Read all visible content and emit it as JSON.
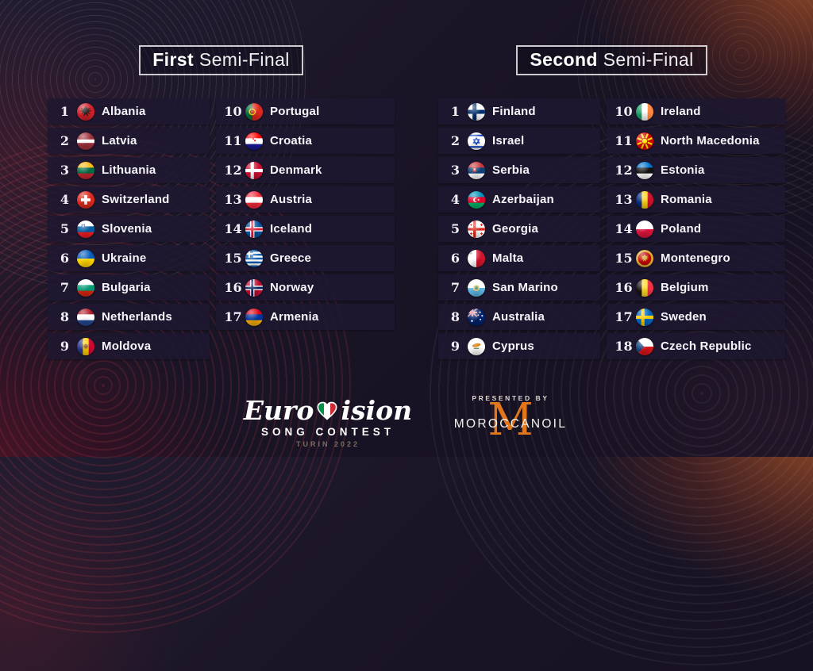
{
  "semifinals": [
    {
      "title_bold": "First",
      "title_light": "Semi-Final",
      "columns": [
        [
          {
            "n": "1",
            "name": "Albania",
            "flag": "albania"
          },
          {
            "n": "2",
            "name": "Latvia",
            "flag": "latvia"
          },
          {
            "n": "3",
            "name": "Lithuania",
            "flag": "lithuania"
          },
          {
            "n": "4",
            "name": "Switzerland",
            "flag": "switzerland"
          },
          {
            "n": "5",
            "name": "Slovenia",
            "flag": "slovenia"
          },
          {
            "n": "6",
            "name": "Ukraine",
            "flag": "ukraine"
          },
          {
            "n": "7",
            "name": "Bulgaria",
            "flag": "bulgaria"
          },
          {
            "n": "8",
            "name": "Netherlands",
            "flag": "netherlands"
          },
          {
            "n": "9",
            "name": "Moldova",
            "flag": "moldova"
          }
        ],
        [
          {
            "n": "10",
            "name": "Portugal",
            "flag": "portugal"
          },
          {
            "n": "11",
            "name": "Croatia",
            "flag": "croatia"
          },
          {
            "n": "12",
            "name": "Denmark",
            "flag": "denmark"
          },
          {
            "n": "13",
            "name": "Austria",
            "flag": "austria"
          },
          {
            "n": "14",
            "name": "Iceland",
            "flag": "iceland"
          },
          {
            "n": "15",
            "name": "Greece",
            "flag": "greece"
          },
          {
            "n": "16",
            "name": "Norway",
            "flag": "norway"
          },
          {
            "n": "17",
            "name": "Armenia",
            "flag": "armenia"
          }
        ]
      ]
    },
    {
      "title_bold": "Second",
      "title_light": "Semi-Final",
      "columns": [
        [
          {
            "n": "1",
            "name": "Finland",
            "flag": "finland"
          },
          {
            "n": "2",
            "name": "Israel",
            "flag": "israel"
          },
          {
            "n": "3",
            "name": "Serbia",
            "flag": "serbia"
          },
          {
            "n": "4",
            "name": "Azerbaijan",
            "flag": "azerbaijan"
          },
          {
            "n": "5",
            "name": "Georgia",
            "flag": "georgia"
          },
          {
            "n": "6",
            "name": "Malta",
            "flag": "malta"
          },
          {
            "n": "7",
            "name": "San Marino",
            "flag": "san_marino"
          },
          {
            "n": "8",
            "name": "Australia",
            "flag": "australia"
          },
          {
            "n": "9",
            "name": "Cyprus",
            "flag": "cyprus"
          }
        ],
        [
          {
            "n": "10",
            "name": "Ireland",
            "flag": "ireland"
          },
          {
            "n": "11",
            "name": "North Macedonia",
            "flag": "north_macedonia"
          },
          {
            "n": "12",
            "name": "Estonia",
            "flag": "estonia"
          },
          {
            "n": "13",
            "name": "Romania",
            "flag": "romania"
          },
          {
            "n": "14",
            "name": "Poland",
            "flag": "poland"
          },
          {
            "n": "15",
            "name": "Montenegro",
            "flag": "montenegro"
          },
          {
            "n": "16",
            "name": "Belgium",
            "flag": "belgium"
          },
          {
            "n": "17",
            "name": "Sweden",
            "flag": "sweden"
          },
          {
            "n": "18",
            "name": "Czech Republic",
            "flag": "czech"
          }
        ]
      ]
    }
  ],
  "footer": {
    "eurovision": {
      "word_left": "Euro",
      "word_right": "ision",
      "subtitle": "SONG CONTEST",
      "year": "TURIN 2022",
      "heart_colors": [
        "#009246",
        "#ffffff",
        "#ce2b37"
      ]
    },
    "sponsor": {
      "presented": "PRESENTED BY",
      "mark": "M",
      "name": "MOROCCANOIL"
    }
  },
  "colors": {
    "accent_orange": "#e2761b",
    "row_background": "#1d1830",
    "text": "#f7f5fa",
    "turin_text": "#7b6c60"
  },
  "flags": {
    "albania": {
      "bg": "#cf2028",
      "over": [
        [
          "eagle",
          "#1a1412",
          12,
          11.5,
          15
        ]
      ]
    },
    "latvia": {
      "stripes": {
        "dir": "h",
        "parts": [
          [
            "#9e3039",
            2
          ],
          [
            "#ffffff",
            1
          ],
          [
            "#9e3039",
            2
          ]
        ]
      }
    },
    "lithuania": {
      "stripes": {
        "dir": "h",
        "parts": [
          [
            "#fdb913",
            1
          ],
          [
            "#006a44",
            1
          ],
          [
            "#c1272d",
            1
          ]
        ]
      }
    },
    "switzerland": {
      "bg": "#da291c",
      "over": [
        [
          "plus",
          "#ffffff",
          12,
          12,
          13,
          4
        ]
      ]
    },
    "slovenia": {
      "stripes": {
        "dir": "h",
        "parts": [
          [
            "#ffffff",
            1
          ],
          [
            "#005da4",
            1
          ],
          [
            "#ed1c24",
            1
          ]
        ]
      },
      "over": [
        [
          "shield",
          "#1d5ba4",
          8.5,
          8,
          6
        ]
      ]
    },
    "ukraine": {
      "stripes": {
        "dir": "h",
        "parts": [
          [
            "#005bbb",
            1
          ],
          [
            "#ffd500",
            1
          ]
        ]
      }
    },
    "bulgaria": {
      "stripes": {
        "dir": "h",
        "parts": [
          [
            "#ffffff",
            1
          ],
          [
            "#009b74",
            1
          ],
          [
            "#d62612",
            1
          ]
        ]
      }
    },
    "netherlands": {
      "stripes": {
        "dir": "h",
        "parts": [
          [
            "#ae1c28",
            1
          ],
          [
            "#ffffff",
            1
          ],
          [
            "#21468b",
            1
          ]
        ]
      }
    },
    "moldova": {
      "stripes": {
        "dir": "v",
        "parts": [
          [
            "#27348b",
            1
          ],
          [
            "#ffd200",
            1
          ],
          [
            "#cc092f",
            1
          ]
        ]
      },
      "over": [
        [
          "eagle",
          "#8a5a2a",
          12,
          12,
          9
        ]
      ]
    },
    "portugal": {
      "stripes": {
        "dir": "v",
        "parts": [
          [
            "#046a38",
            2
          ],
          [
            "#da291c",
            3
          ]
        ]
      },
      "over": [
        [
          "ring",
          "#ffd700",
          9.6,
          12,
          8
        ],
        [
          "circle",
          "#da291c",
          9.6,
          12,
          4
        ]
      ]
    },
    "croatia": {
      "stripes": {
        "dir": "h",
        "parts": [
          [
            "#ff0000",
            1
          ],
          [
            "#ffffff",
            1
          ],
          [
            "#171796",
            1
          ]
        ]
      },
      "over": [
        [
          "checker",
          "#ff0000",
          12,
          10,
          4.4
        ]
      ]
    },
    "denmark": {
      "bg": "#c8102e",
      "cross": {
        "c": "#ffffff",
        "w": 4.5
      }
    },
    "austria": {
      "stripes": {
        "dir": "h",
        "parts": [
          [
            "#ed2939",
            1
          ],
          [
            "#ffffff",
            1
          ],
          [
            "#ed2939",
            1
          ]
        ]
      }
    },
    "iceland": {
      "bg": "#02529c",
      "cross": {
        "c": "#ffffff",
        "w": 6,
        "inner": [
          "#dc1e35",
          3
        ]
      }
    },
    "greece": {
      "stripes": {
        "dir": "h",
        "parts": [
          [
            "#0d5eaf",
            1
          ],
          [
            "#ffffff",
            1
          ],
          [
            "#0d5eaf",
            1
          ],
          [
            "#ffffff",
            1
          ],
          [
            "#0d5eaf",
            1
          ],
          [
            "#ffffff",
            1
          ],
          [
            "#0d5eaf",
            1
          ],
          [
            "#ffffff",
            1
          ],
          [
            "#0d5eaf",
            1
          ]
        ]
      },
      "over": [
        [
          "rect",
          "#0d5eaf",
          0,
          0,
          10.6,
          10.6
        ],
        [
          "plus",
          "#ffffff",
          5.3,
          5.3,
          10.6,
          2.4
        ]
      ]
    },
    "norway": {
      "bg": "#ba0c2f",
      "cross": {
        "c": "#ffffff",
        "w": 6,
        "inner": [
          "#00205b",
          3
        ]
      }
    },
    "armenia": {
      "stripes": {
        "dir": "h",
        "parts": [
          [
            "#d90012",
            1
          ],
          [
            "#0033a0",
            1
          ],
          [
            "#f2a800",
            1
          ]
        ]
      }
    },
    "finland": {
      "bg": "#ffffff",
      "cross": {
        "c": "#002f6c",
        "w": 5.5
      }
    },
    "israel": {
      "stripes": {
        "dir": "h",
        "parts": [
          [
            "#ffffff",
            3
          ],
          [
            "#0038b8",
            2.2
          ],
          [
            "#ffffff",
            13.6
          ],
          [
            "#0038b8",
            2.2
          ],
          [
            "#ffffff",
            3
          ]
        ]
      },
      "over": [
        [
          "star6",
          "#0038b8",
          12,
          12,
          9
        ]
      ]
    },
    "serbia": {
      "stripes": {
        "dir": "h",
        "parts": [
          [
            "#c6363c",
            1
          ],
          [
            "#0c4076",
            1
          ],
          [
            "#ffffff",
            1
          ]
        ]
      },
      "over": [
        [
          "shield",
          "#c1272d",
          9.5,
          11,
          7
        ]
      ]
    },
    "azerbaijan": {
      "stripes": {
        "dir": "h",
        "parts": [
          [
            "#0092bc",
            1
          ],
          [
            "#e4002b",
            1
          ],
          [
            "#00ae65",
            1
          ]
        ]
      },
      "over": [
        [
          "crescent",
          "#ffffff",
          11,
          12,
          6.5,
          "#e4002b"
        ],
        [
          "star5",
          "#ffffff",
          15,
          12,
          3.4
        ]
      ]
    },
    "georgia": {
      "bg": "#ffffff",
      "cross": {
        "c": "#da291c",
        "w": 3.6
      },
      "over": [
        [
          "plus",
          "#da291c",
          4.9,
          5.9,
          3.4,
          1.1
        ],
        [
          "plus",
          "#da291c",
          19.1,
          5.9,
          3.4,
          1.1
        ],
        [
          "plus",
          "#da291c",
          4.9,
          18.1,
          3.4,
          1.1
        ],
        [
          "plus",
          "#da291c",
          19.1,
          18.1,
          3.4,
          1.1
        ]
      ]
    },
    "malta": {
      "stripes": {
        "dir": "v",
        "parts": [
          [
            "#ffffff",
            1
          ],
          [
            "#cf142b",
            1
          ]
        ]
      },
      "over": [
        [
          "plus",
          "#9aa0a6",
          4.5,
          4.5,
          4,
          1.2
        ]
      ]
    },
    "san_marino": {
      "stripes": {
        "dir": "h",
        "parts": [
          [
            "#ffffff",
            1
          ],
          [
            "#5eb6e4",
            1
          ]
        ]
      },
      "over": [
        [
          "circle",
          "#e8d188",
          12,
          12,
          9
        ],
        [
          "circle",
          "#5a9367",
          12,
          12,
          5
        ]
      ]
    },
    "australia": {
      "bg": "#012169",
      "over": [
        [
          "uj",
          "#ffffff",
          0,
          0,
          0
        ],
        [
          "star5",
          "#ffffff",
          6,
          17,
          4.5
        ],
        [
          "circle",
          "#ffffff",
          17,
          5,
          2.2
        ],
        [
          "circle",
          "#ffffff",
          20,
          10,
          2.2
        ],
        [
          "circle",
          "#ffffff",
          17.5,
          15,
          2.2
        ],
        [
          "circle",
          "#ffffff",
          14.5,
          9,
          1.8
        ]
      ]
    },
    "cyprus": {
      "bg": "#ffffff",
      "over": [
        [
          "blob",
          "#d47600",
          12,
          10,
          12
        ],
        [
          "rect",
          "#4a7729",
          8.5,
          13.8,
          7,
          1.2
        ]
      ]
    },
    "ireland": {
      "stripes": {
        "dir": "v",
        "parts": [
          [
            "#169b62",
            1
          ],
          [
            "#ffffff",
            1
          ],
          [
            "#ff883e",
            1
          ]
        ]
      }
    },
    "north_macedonia": {
      "bg": "#d20000",
      "over": [
        [
          "sun",
          "#ffe600",
          12,
          12,
          22
        ]
      ]
    },
    "estonia": {
      "stripes": {
        "dir": "h",
        "parts": [
          [
            "#0072ce",
            1
          ],
          [
            "#111111",
            1
          ],
          [
            "#ffffff",
            1
          ]
        ]
      }
    },
    "romania": {
      "stripes": {
        "dir": "v",
        "parts": [
          [
            "#002b7f",
            1
          ],
          [
            "#fcd116",
            1
          ],
          [
            "#ce1126",
            1
          ]
        ]
      }
    },
    "poland": {
      "stripes": {
        "dir": "h",
        "parts": [
          [
            "#ffffff",
            1
          ],
          [
            "#dc143c",
            1
          ]
        ]
      }
    },
    "montenegro": {
      "bg": "#c40308",
      "over": [
        [
          "ring",
          "#d4af37",
          12,
          12,
          21
        ],
        [
          "eagle",
          "#d4af37",
          12,
          11.5,
          11
        ]
      ]
    },
    "belgium": {
      "stripes": {
        "dir": "v",
        "parts": [
          [
            "#17120f",
            1
          ],
          [
            "#fdda24",
            1
          ],
          [
            "#ef3340",
            1
          ]
        ]
      }
    },
    "sweden": {
      "bg": "#0065bd",
      "cross": {
        "c": "#fecc02",
        "w": 4.5
      }
    },
    "czech": {
      "stripes": {
        "dir": "h",
        "parts": [
          [
            "#ffffff",
            1
          ],
          [
            "#d7141a",
            1
          ]
        ]
      },
      "over": [
        [
          "tri",
          "#11457e",
          0,
          0,
          11
        ]
      ]
    }
  }
}
